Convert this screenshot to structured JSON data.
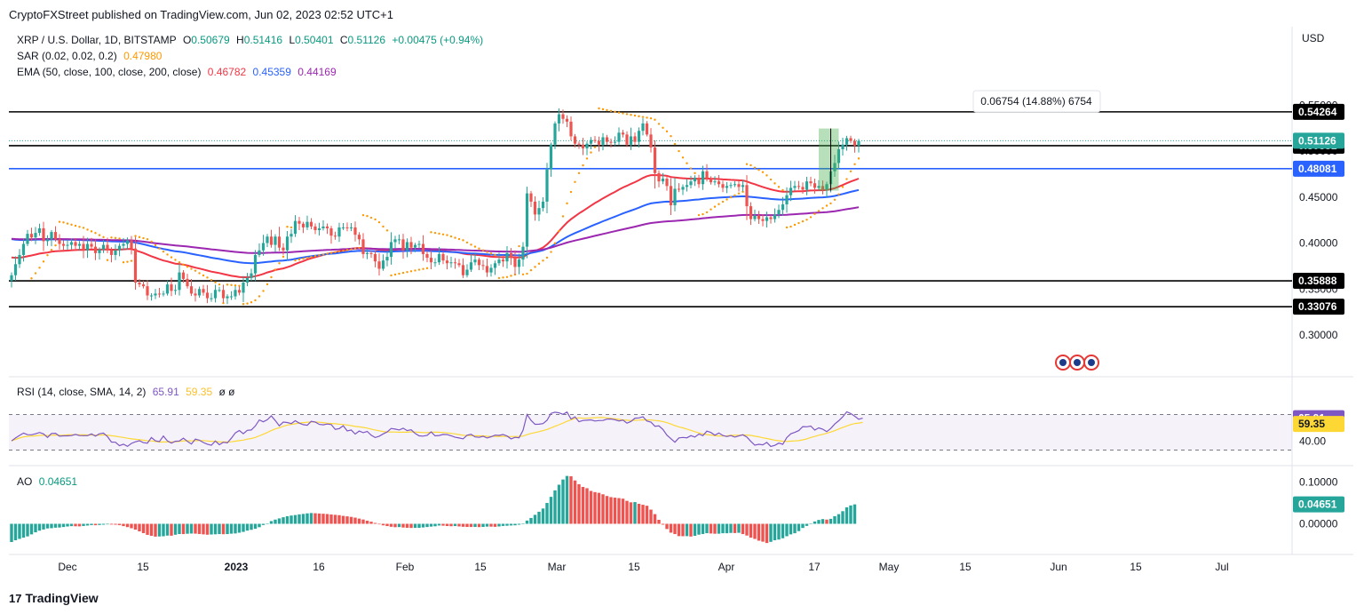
{
  "publisher_line": "CryptoFXStreet published on TradingView.com, Jun 02, 2023 02:52 UTC+1",
  "legend": {
    "symbol": "XRP / U.S. Dollar, 1D, BITSTAMP",
    "open_label": "O",
    "open": "0.50679",
    "high_label": "H",
    "high": "0.51416",
    "low_label": "L",
    "low": "0.50401",
    "close_label": "C",
    "close": "0.51126",
    "change": "+0.00475 (+0.94%)",
    "sar_label": "SAR (0.02, 0.02, 0.2)",
    "sar_value": "0.47980",
    "ema_label": "EMA (50, close, 100, close, 200, close)",
    "ema50": "0.46782",
    "ema100": "0.45359",
    "ema200": "0.44169"
  },
  "currency": "USD",
  "measure_label": "0.06754 (14.88%) 6754",
  "rsi_legend": {
    "label": "RSI (14, close, SMA, 14, 2)",
    "rsi": "65.91",
    "sma": "59.35",
    "extra": "ø  ø"
  },
  "ao_legend": {
    "label": "AO",
    "value": "0.04651"
  },
  "footer": {
    "brand": "TradingView",
    "logo": "17"
  },
  "colors": {
    "up": "#26a69a",
    "down": "#ef5350",
    "ema50": "#f23645",
    "ema100": "#2962ff",
    "ema200": "#9c27b0",
    "sar": "#ff9800",
    "rsi": "#7e57c2",
    "rsi_sma": "#fdd835",
    "hline": "#000000",
    "blue_line": "#2962ff"
  },
  "chart_data": [
    {
      "type": "candlestick",
      "title": "XRP / U.S. Dollar, 1D, BITSTAMP",
      "x_ticks": [
        "Dec",
        "15",
        "2023",
        "16",
        "Feb",
        "15",
        "Mar",
        "15",
        "Apr",
        "17",
        "May",
        "15",
        "Jun",
        "15",
        "Jul"
      ],
      "y_ticks": [
        0.55,
        0.5,
        0.45,
        0.4,
        0.35,
        0.3
      ],
      "y_tick_labels": [
        "0.55000",
        "0.50000",
        "0.45000",
        "0.40000",
        "0.35000",
        "0.30000"
      ],
      "ylim": [
        0.275,
        0.575
      ],
      "grid": false,
      "horizontal_levels": [
        {
          "value": 0.54264,
          "label": "0.54264",
          "color": "#000000"
        },
        {
          "value": 0.50581,
          "label": "0.50581",
          "color": "#000000"
        },
        {
          "value": 0.48081,
          "label": "0.48081",
          "color": "#2962ff"
        },
        {
          "value": 0.35888,
          "label": "0.35888",
          "color": "#000000"
        },
        {
          "value": 0.33076,
          "label": "0.33076",
          "color": "#000000"
        }
      ],
      "last_price": {
        "value": 0.51126,
        "label": "0.51126"
      },
      "candles_close": [
        0.365,
        0.377,
        0.387,
        0.399,
        0.41,
        0.406,
        0.411,
        0.416,
        0.402,
        0.404,
        0.412,
        0.404,
        0.399,
        0.397,
        0.398,
        0.401,
        0.397,
        0.399,
        0.392,
        0.399,
        0.396,
        0.389,
        0.393,
        0.398,
        0.392,
        0.387,
        0.392,
        0.397,
        0.399,
        0.403,
        0.394,
        0.357,
        0.355,
        0.353,
        0.343,
        0.343,
        0.345,
        0.344,
        0.345,
        0.355,
        0.348,
        0.349,
        0.368,
        0.361,
        0.353,
        0.345,
        0.343,
        0.35,
        0.346,
        0.34,
        0.34,
        0.349,
        0.349,
        0.34,
        0.342,
        0.342,
        0.349,
        0.346,
        0.357,
        0.362,
        0.367,
        0.387,
        0.392,
        0.4,
        0.407,
        0.398,
        0.407,
        0.395,
        0.392,
        0.407,
        0.41,
        0.424,
        0.421,
        0.417,
        0.423,
        0.418,
        0.414,
        0.416,
        0.418,
        0.416,
        0.408,
        0.407,
        0.417,
        0.417,
        0.416,
        0.417,
        0.409,
        0.404,
        0.388,
        0.389,
        0.388,
        0.38,
        0.372,
        0.381,
        0.385,
        0.401,
        0.404,
        0.404,
        0.392,
        0.401,
        0.395,
        0.398,
        0.399,
        0.388,
        0.384,
        0.379,
        0.379,
        0.388,
        0.381,
        0.378,
        0.379,
        0.378,
        0.376,
        0.365,
        0.371,
        0.379,
        0.382,
        0.376,
        0.375,
        0.368,
        0.373,
        0.378,
        0.382,
        0.38,
        0.389,
        0.384,
        0.374,
        0.382,
        0.396,
        0.454,
        0.445,
        0.431,
        0.438,
        0.445,
        0.48,
        0.507,
        0.53,
        0.54,
        0.535,
        0.532,
        0.516,
        0.508,
        0.507,
        0.503,
        0.508,
        0.512,
        0.511,
        0.507,
        0.515,
        0.51,
        0.509,
        0.51,
        0.52,
        0.518,
        0.507,
        0.516,
        0.51,
        0.522,
        0.53,
        0.518,
        0.504,
        0.476,
        0.467,
        0.47,
        0.462,
        0.441,
        0.459,
        0.458,
        0.461,
        0.463,
        0.467,
        0.471,
        0.464,
        0.478,
        0.47,
        0.466,
        0.467,
        0.464,
        0.46,
        0.462,
        0.463,
        0.464,
        0.461,
        0.463,
        0.44,
        0.426,
        0.43,
        0.426,
        0.424,
        0.428,
        0.426,
        0.431,
        0.436,
        0.442,
        0.452,
        0.46,
        0.462,
        0.461,
        0.458,
        0.467,
        0.465,
        0.46,
        0.462,
        0.458,
        0.464,
        0.478,
        0.487,
        0.502,
        0.507,
        0.514,
        0.511,
        0.506,
        0.511
      ]
    },
    {
      "type": "line",
      "title": "RSI (14, close, SMA, 14, 2)",
      "series": [
        {
          "name": "RSI",
          "last": 65.91
        },
        {
          "name": "SMA",
          "last": 59.35
        }
      ],
      "y_tick_labels": [
        "40.00"
      ],
      "levels": [
        70,
        30
      ],
      "ylim": [
        25,
        80
      ],
      "rsi_values": [
        40.3,
        43.6,
        46.5,
        49.1,
        47.3,
        47.2,
        48.3,
        49.8,
        48.2,
        44.2,
        48.7,
        48.9,
        45.6,
        46.0,
        46.0,
        46.3,
        47.6,
        46.3,
        46.2,
        46.2,
        48.2,
        45.7,
        48.3,
        49.1,
        45.2,
        39.0,
        38.8,
        34.9,
        36.6,
        34.2,
        37.5,
        39.3,
        40.5,
        38.3,
        37.8,
        44.1,
        40.4,
        39.5,
        45.8,
        40.3,
        37.8,
        39.9,
        40.2,
        43.4,
        39.8,
        36.8,
        42.3,
        41.1,
        38.5,
        36.6,
        35.4,
        40.2,
        36.0,
        38.8,
        38.1,
        43.3,
        49.3,
        52.0,
        48.4,
        52.2,
        52.6,
        57.1,
        63.9,
        61.8,
        64.1,
        68.5,
        63.2,
        57.3,
        61.5,
        61.0,
        59.8,
        63.0,
        60.3,
        58.6,
        57.9,
        62.3,
        61.5,
        58.9,
        58.4,
        59.3,
        58.7,
        53.3,
        54.1,
        57.4,
        51.5,
        52.6,
        48.0,
        51.4,
        49.6,
        51.0,
        46.7,
        44.1,
        45.6,
        48.2,
        50.4,
        54.3,
        53.6,
        52.6,
        54.6,
        51.9,
        52.8,
        48.7,
        46.0,
        45.7,
        46.5,
        50.4,
        46.0,
        46.4,
        47.6,
        47.4,
        46.1,
        44.4,
        43.6,
        42.6,
        46.7,
        47.7,
        44.8,
        44.3,
        45.5,
        43.6,
        45.0,
        46.8,
        46.5,
        47.5,
        45.8,
        42.6,
        44.3,
        43.8,
        52.2,
        70.1,
        63.4,
        59.0,
        59.1,
        59.8,
        63.5,
        71.3,
        72.6,
        71.9,
        70.2,
        72.8,
        64.9,
        67.4,
        61.9,
        63.3,
        63.6,
        64.0,
        62.7,
        63.2,
        63.3,
        64.8,
        65.0,
        64.1,
        62.8,
        63.7,
        60.3,
        62.2,
        65.9,
        66.2,
        67.5,
        62.7,
        61.5,
        56.8,
        57.2,
        53.2,
        46.8,
        42.8,
        38.8,
        43.7,
        44.2,
        43.8,
        46.2,
        44.7,
        48.0,
        46.2,
        51.3,
        49.8,
        46.7,
        49.2,
        46.4,
        45.2,
        46.3,
        44.6,
        45.9,
        47.2,
        44.6,
        39.8,
        35.5,
        36.5,
        35.9,
        38.6,
        34.1,
        35.3,
        37.8,
        36.5,
        44.0,
        48.3,
        49.9,
        51.9,
        56.4,
        56.2,
        57.0,
        52.5,
        55.0,
        53.5,
        50.7,
        54.3,
        59.3,
        63.0,
        67.4,
        73.0,
        71.1,
        68.1,
        64.7,
        65.9
      ]
    },
    {
      "type": "bar",
      "title": "AO",
      "last": 0.04651,
      "y_tick_labels": [
        "0.10000",
        "0.00000"
      ],
      "ylim": [
        -0.053,
        0.12
      ],
      "values": [
        -0.0436,
        -0.0394,
        -0.0361,
        -0.0332,
        -0.0301,
        -0.0253,
        -0.0204,
        -0.0164,
        -0.0136,
        -0.0111,
        -0.0105,
        -0.0093,
        -0.0089,
        -0.0077,
        -0.0064,
        -0.0056,
        -0.0059,
        -0.0061,
        -0.0052,
        -0.0041,
        -0.0031,
        -0.0034,
        -0.0028,
        -0.0021,
        -0.0014,
        -0.0018,
        -0.0021,
        -0.0031,
        -0.0055,
        -0.0079,
        -0.0106,
        -0.0139,
        -0.0181,
        -0.0223,
        -0.0265,
        -0.0288,
        -0.0307,
        -0.0303,
        -0.0298,
        -0.0282,
        -0.0285,
        -0.0262,
        -0.0245,
        -0.0246,
        -0.0238,
        -0.0233,
        -0.0236,
        -0.0244,
        -0.0253,
        -0.0261,
        -0.0256,
        -0.0251,
        -0.0246,
        -0.0249,
        -0.0246,
        -0.0236,
        -0.0231,
        -0.0213,
        -0.0193,
        -0.0163,
        -0.0144,
        -0.0119,
        -0.0081,
        -0.0029,
        0.0006,
        0.0065,
        0.0101,
        0.0129,
        0.0157,
        0.0181,
        0.0198,
        0.021,
        0.0226,
        0.0237,
        0.025,
        0.0258,
        0.0253,
        0.0247,
        0.0241,
        0.0234,
        0.0223,
        0.0215,
        0.0207,
        0.019,
        0.0179,
        0.0166,
        0.0148,
        0.0125,
        0.0103,
        0.0074,
        0.0051,
        0.0021,
        -0.0013,
        -0.0037,
        -0.0054,
        -0.0071,
        -0.0081,
        -0.0078,
        -0.0089,
        -0.0095,
        -0.0099,
        -0.0097,
        -0.0096,
        -0.0087,
        -0.0077,
        -0.0067,
        -0.0059,
        -0.0041,
        -0.0045,
        -0.0053,
        -0.0058,
        -0.0054,
        -0.0063,
        -0.0071,
        -0.0075,
        -0.0076,
        -0.0075,
        -0.0079,
        -0.0075,
        -0.0067,
        -0.0068,
        -0.0072,
        -0.0063,
        -0.0051,
        -0.0046,
        -0.004,
        -0.0036,
        -0.0021,
        -0.0001,
        0.0078,
        0.014,
        0.0215,
        0.0289,
        0.0366,
        0.0499,
        0.0646,
        0.0801,
        0.0936,
        0.1061,
        0.1146,
        0.1138,
        0.1038,
        0.0949,
        0.0883,
        0.0852,
        0.0787,
        0.0759,
        0.0742,
        0.0707,
        0.0666,
        0.0639,
        0.0626,
        0.0616,
        0.0602,
        0.055,
        0.0514,
        0.052,
        0.0479,
        0.0456,
        0.0433,
        0.034,
        0.0232,
        0.0096,
        -0.002,
        -0.0125,
        -0.0212,
        -0.0246,
        -0.0295,
        -0.0297,
        -0.0295,
        -0.0305,
        -0.0287,
        -0.026,
        -0.0244,
        -0.0225,
        -0.0232,
        -0.0238,
        -0.0237,
        -0.0226,
        -0.0226,
        -0.0218,
        -0.0221,
        -0.0215,
        -0.0246,
        -0.0281,
        -0.0332,
        -0.0362,
        -0.0404,
        -0.0428,
        -0.046,
        -0.0432,
        -0.0394,
        -0.0377,
        -0.0346,
        -0.0297,
        -0.0253,
        -0.0226,
        -0.0175,
        -0.01,
        -0.005,
        0.0009,
        0.0056,
        0.0093,
        0.0113,
        0.0101,
        0.0119,
        0.0183,
        0.0231,
        0.0302,
        0.0395,
        0.044,
        0.0465
      ]
    }
  ]
}
